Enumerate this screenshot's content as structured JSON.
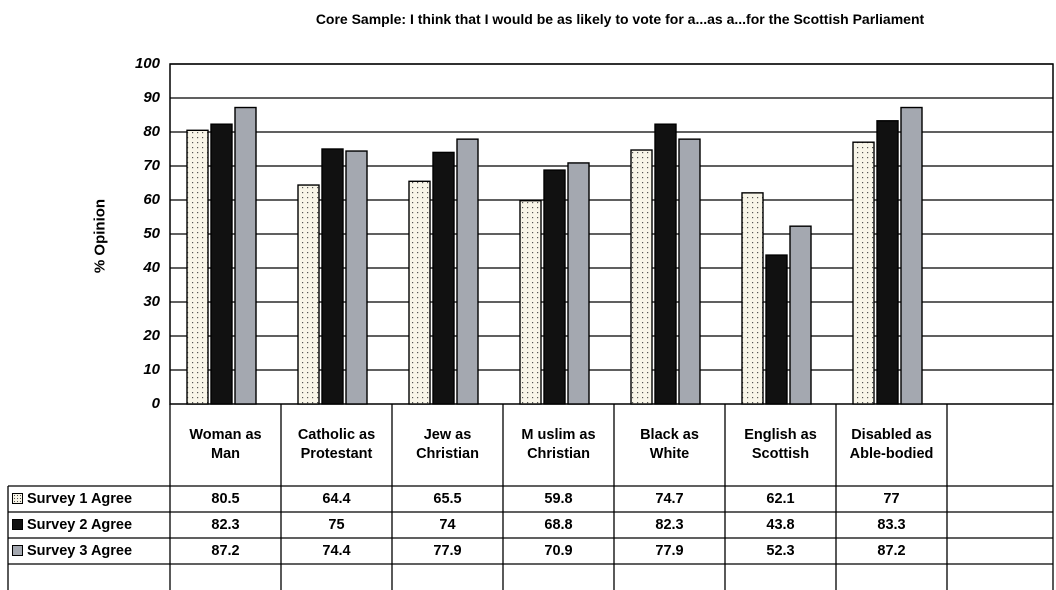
{
  "chart_data": {
    "type": "bar",
    "title": "Core Sample: I think that I would be as likely to vote for a...as a...for the Scottish Parliament",
    "ylabel": "% Opinion",
    "xlabel": "",
    "ylim": [
      0,
      100
    ],
    "yticks": [
      "0",
      "10",
      "20",
      "30",
      "40",
      "50",
      "60",
      "70",
      "80",
      "90",
      "100"
    ],
    "grid": true,
    "legend": "table-left",
    "categories": [
      [
        "Woman as",
        "Man"
      ],
      [
        "Catholic as",
        "Protestant"
      ],
      [
        "Jew as",
        "Christian"
      ],
      [
        "M uslim as",
        "Christian"
      ],
      [
        "Black as",
        "White"
      ],
      [
        "English as",
        "Scottish"
      ],
      [
        "Disabled  as",
        "Able-bodied"
      ]
    ],
    "series": [
      {
        "name": "Survey 1 Agree",
        "fill": "dotted",
        "color": "#f8f5e8",
        "values": [
          80.5,
          64.4,
          65.5,
          59.8,
          74.7,
          62.1,
          77
        ],
        "labels": [
          "80.5",
          "64.4",
          "65.5",
          "59.8",
          "74.7",
          "62.1",
          "77"
        ]
      },
      {
        "name": "Survey 2 Agree",
        "fill": "solid",
        "color": "#111111",
        "values": [
          82.3,
          75,
          74,
          68.8,
          82.3,
          43.8,
          83.3
        ],
        "labels": [
          "82.3",
          "75",
          "74",
          "68.8",
          "82.3",
          "43.8",
          "83.3"
        ]
      },
      {
        "name": "Survey 3 Agree",
        "fill": "solid",
        "color": "#a4a8b0",
        "values": [
          87.2,
          74.4,
          77.9,
          70.9,
          77.9,
          52.3,
          87.2
        ],
        "labels": [
          "87.2",
          "74.4",
          "77.9",
          "70.9",
          "77.9",
          "52.3",
          "87.2"
        ]
      }
    ]
  }
}
